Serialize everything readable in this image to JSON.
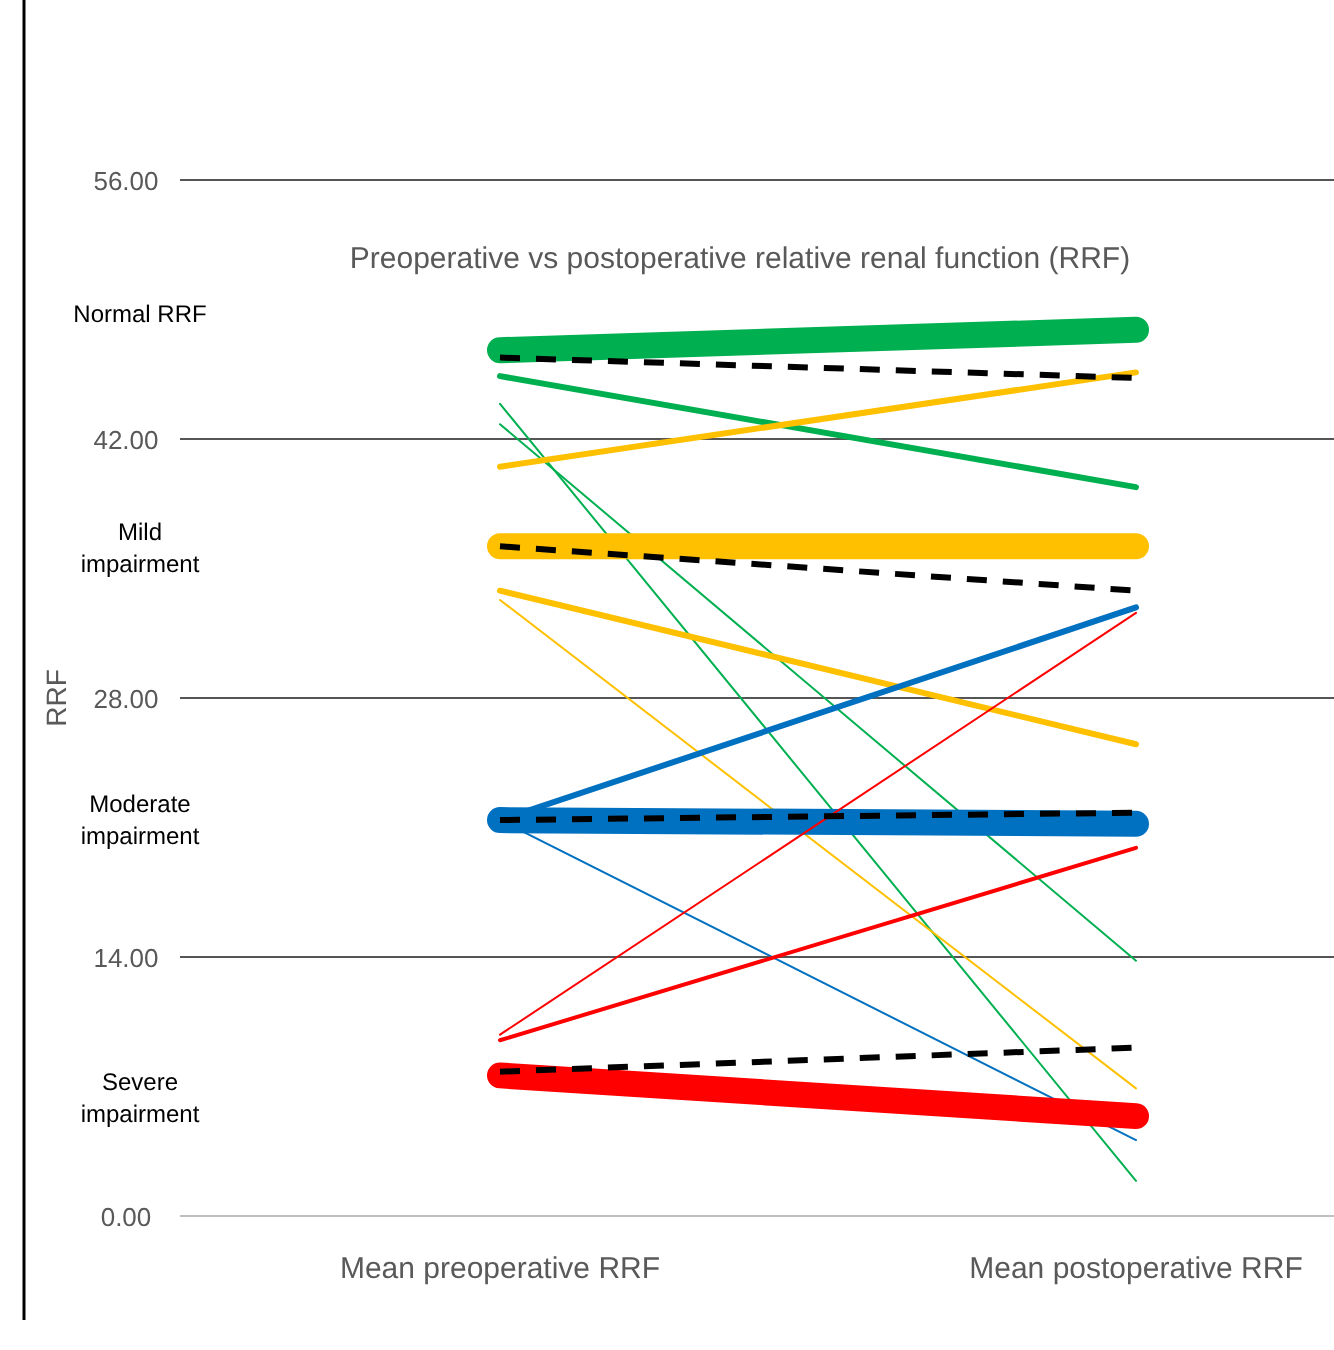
{
  "chart_data": {
    "type": "line",
    "title": "Preoperative vs postoperative relative renal function (RRF)",
    "ylabel": "RRF",
    "categories": [
      "Mean preoperative RRF",
      "Mean postoperative RRF"
    ],
    "ylim": [
      0,
      56
    ],
    "yticks": [
      {
        "value": 0,
        "label": "0.00"
      },
      {
        "value": 14,
        "label": "14.00"
      },
      {
        "value": 28,
        "label": "28.00"
      },
      {
        "value": 42,
        "label": "42.00"
      },
      {
        "value": 56,
        "label": "56.00"
      }
    ],
    "grid": "y",
    "marker": "none",
    "annotations": [
      "Normal RRF",
      "Mild impairment",
      "Moderate impairment",
      "Severe impairment"
    ],
    "series": [
      {
        "color": "#00b050",
        "values": [
          46.8,
          47.9
        ]
      },
      {
        "color": "#00b050",
        "values": [
          45.4,
          39.4
        ]
      },
      {
        "color": "#00b050",
        "values": [
          43.9,
          1.9
        ]
      },
      {
        "color": "#00b050",
        "values": [
          42.8,
          13.8
        ]
      },
      {
        "color": "#ffc000",
        "values": [
          40.5,
          45.6
        ]
      },
      {
        "color": "#ffc000",
        "values": [
          36.2,
          36.2
        ]
      },
      {
        "color": "#ffc000",
        "values": [
          33.8,
          25.5
        ]
      },
      {
        "color": "#ffc000",
        "values": [
          33.3,
          6.9
        ]
      },
      {
        "color": "#0070c0",
        "values": [
          21.4,
          21.2
        ]
      },
      {
        "color": "#0070c0",
        "values": [
          21.4,
          32.9
        ]
      },
      {
        "color": "#0070c0",
        "values": [
          21.4,
          4.1
        ]
      },
      {
        "color": "#ff0000",
        "values": [
          9.8,
          32.6
        ]
      },
      {
        "color": "#ff0000",
        "values": [
          9.5,
          19.9
        ]
      },
      {
        "color": "#ff0000",
        "values": [
          7.6,
          5.4
        ]
      },
      {
        "color": "#000000",
        "line_style": "dashed",
        "values": [
          46.4,
          45.3
        ]
      },
      {
        "color": "#000000",
        "line_style": "dashed",
        "values": [
          36.2,
          33.8
        ]
      },
      {
        "color": "#000000",
        "line_style": "dashed",
        "values": [
          21.4,
          21.8
        ]
      },
      {
        "color": "#000000",
        "line_style": "dashed",
        "values": [
          7.8,
          9.1
        ]
      }
    ]
  }
}
